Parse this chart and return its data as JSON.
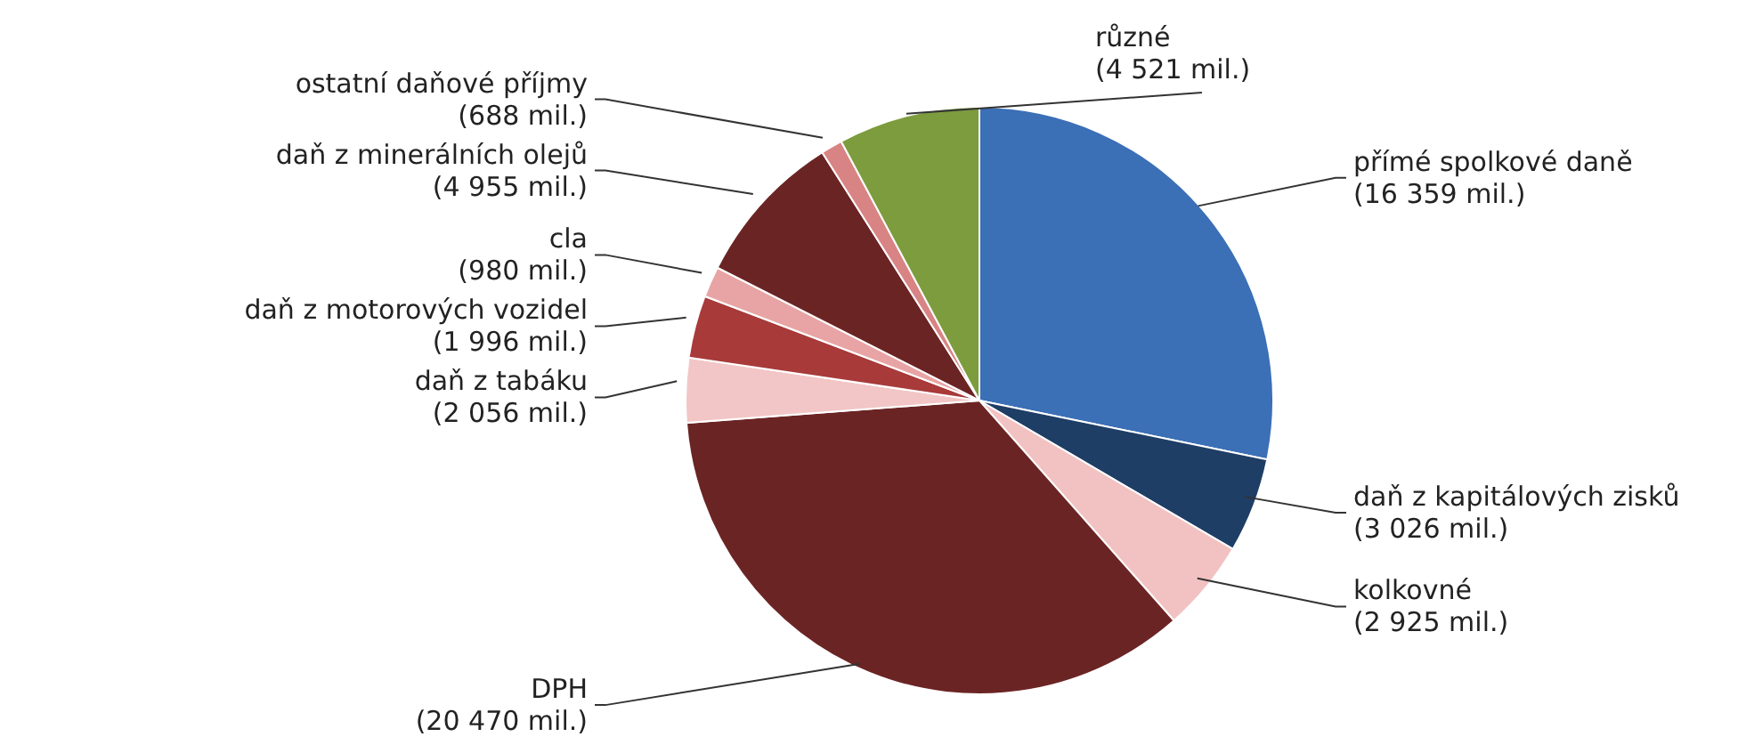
{
  "chart_data": {
    "type": "pie",
    "categories": [
      "přímé spolkové daně",
      "daň z kapitálových zisků",
      "kolkovné",
      "DPH",
      "daň z tabáku",
      "daň z motorových vozidel",
      "cla",
      "daň z minerálních olejů",
      "ostatní daňové příjmy",
      "různé"
    ],
    "values": [
      16359,
      3026,
      2925,
      20470,
      2056,
      1996,
      980,
      4955,
      688,
      4521
    ],
    "value_labels": [
      "(16 359 mil.)",
      "(3 026 mil.)",
      "(2 925 mil.)",
      "(20 470 mil.)",
      "(2 056 mil.)",
      "(1 996 mil.)",
      "(980 mil.)",
      "(4 955 mil.)",
      "(688 mil.)",
      "(4 521 mil.)"
    ],
    "colors": [
      "#3b6fb6",
      "#1f3e66",
      "#f2c2c2",
      "#6b2424",
      "#f2c6c6",
      "#a83a3a",
      "#e8a4a4",
      "#6b2424",
      "#d98484",
      "#7d9c3e"
    ],
    "legend": false
  }
}
